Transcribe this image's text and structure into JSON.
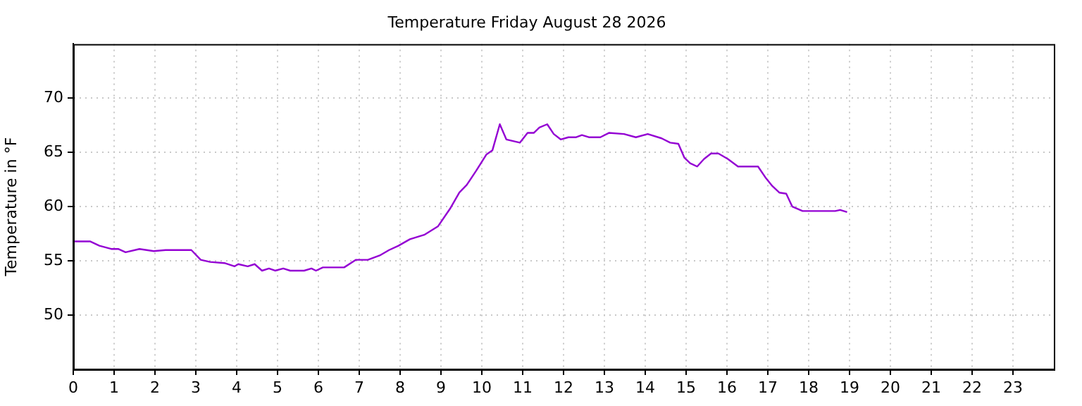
{
  "chart_data": {
    "type": "line",
    "title": "Temperature Friday August 28 2026",
    "ylabel": "Temperature in °F",
    "xlim": [
      0,
      24
    ],
    "xticks": [
      0,
      1,
      2,
      3,
      4,
      5,
      6,
      7,
      8,
      9,
      10,
      11,
      12,
      13,
      14,
      15,
      16,
      17,
      18,
      19,
      20,
      21,
      22,
      23
    ],
    "ylim": [
      45,
      75
    ],
    "yticks": [
      50,
      55,
      60,
      65,
      70
    ],
    "grid": true,
    "legend": false,
    "marker": "none",
    "line_style": "solid",
    "series": [
      {
        "color": "#9400d3",
        "x": [
          0,
          0.41,
          0.64,
          0.93,
          1.1,
          1.28,
          1.62,
          1.97,
          2.26,
          2.89,
          3.12,
          3.35,
          3.7,
          3.95,
          4.04,
          4.27,
          4.44,
          4.62,
          4.79,
          4.94,
          5.14,
          5.31,
          5.65,
          5.83,
          5.94,
          6.11,
          6.63,
          6.92,
          7.21,
          7.5,
          7.73,
          7.96,
          8.24,
          8.59,
          8.93,
          9.22,
          9.45,
          9.63,
          9.86,
          10.11,
          10.26,
          10.44,
          10.6,
          10.93,
          11.12,
          11.27,
          11.41,
          11.6,
          11.76,
          11.93,
          12.12,
          12.31,
          12.45,
          12.62,
          12.9,
          13.11,
          13.48,
          13.77,
          14.06,
          14.4,
          14.61,
          14.81,
          14.96,
          15.1,
          15.27,
          15.44,
          15.61,
          15.79,
          16.02,
          16.27,
          16.76,
          16.94,
          17.11,
          17.28,
          17.45,
          17.6,
          17.85,
          18.65,
          18.77,
          18.94
        ],
        "values": [
          56.8,
          56.8,
          56.4,
          56.1,
          56.1,
          55.8,
          56.1,
          55.9,
          56.0,
          56.0,
          55.1,
          54.9,
          54.8,
          54.5,
          54.7,
          54.5,
          54.7,
          54.1,
          54.3,
          54.1,
          54.3,
          54.1,
          54.1,
          54.3,
          54.1,
          54.4,
          54.4,
          55.1,
          55.1,
          55.5,
          56.0,
          56.4,
          57.0,
          57.4,
          58.2,
          59.8,
          61.3,
          62.0,
          63.3,
          64.8,
          65.2,
          67.6,
          66.2,
          65.9,
          66.8,
          66.8,
          67.3,
          67.6,
          66.7,
          66.2,
          66.4,
          66.4,
          66.6,
          66.4,
          66.4,
          66.8,
          66.7,
          66.4,
          66.7,
          66.3,
          65.9,
          65.8,
          64.5,
          64.0,
          63.7,
          64.4,
          64.9,
          64.9,
          64.4,
          63.7,
          63.7,
          62.7,
          61.9,
          61.3,
          61.2,
          60.0,
          59.6,
          59.6,
          59.7,
          59.5
        ]
      }
    ]
  }
}
